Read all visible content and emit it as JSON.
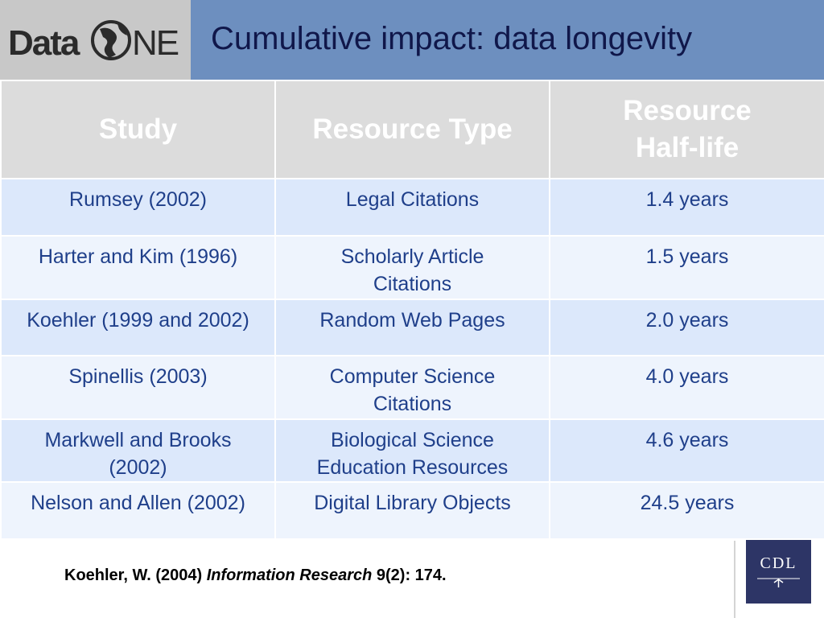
{
  "header": {
    "logo": {
      "text_left": "Data",
      "text_right": "NE"
    },
    "title": "Cumulative impact: data longevity"
  },
  "table": {
    "headers": [
      "Study",
      "Resource Type",
      "Resource Half-life"
    ],
    "rows": [
      {
        "study": "Rumsey (2002)",
        "type": "Legal Citations",
        "half_life": "1.4 years"
      },
      {
        "study": "Harter and Kim (1996)",
        "type": "Scholarly Article Citations",
        "half_life": "1.5 years"
      },
      {
        "study": "Koehler (1999 and 2002)",
        "type": "Random Web Pages",
        "half_life": "2.0 years"
      },
      {
        "study": "Spinellis (2003)",
        "type": "Computer Science Citations",
        "half_life": "4.0 years"
      },
      {
        "study": "Markwell and Brooks (2002)",
        "type": "Biological Science Education Resources",
        "half_life": "4.6 years"
      },
      {
        "study": "Nelson and Allen (2002)",
        "type": "Digital Library Objects",
        "half_life": "24.5 years"
      }
    ]
  },
  "citation": {
    "prefix": "Koehler, W. (2004) ",
    "journal": "Information Research",
    "suffix": " 9(2): 174."
  },
  "footer_logo": {
    "text": "CDL"
  },
  "colors": {
    "header_bar": "#6d8fbf",
    "logo_bg": "#c8c8c8",
    "title_text": "#10174a",
    "table_header_bg": "#dcdcdc",
    "row_dark": "#dce8fb",
    "row_light": "#eef4fd",
    "cell_text": "#1f3f8a",
    "cdl_bg": "#2d3566"
  }
}
